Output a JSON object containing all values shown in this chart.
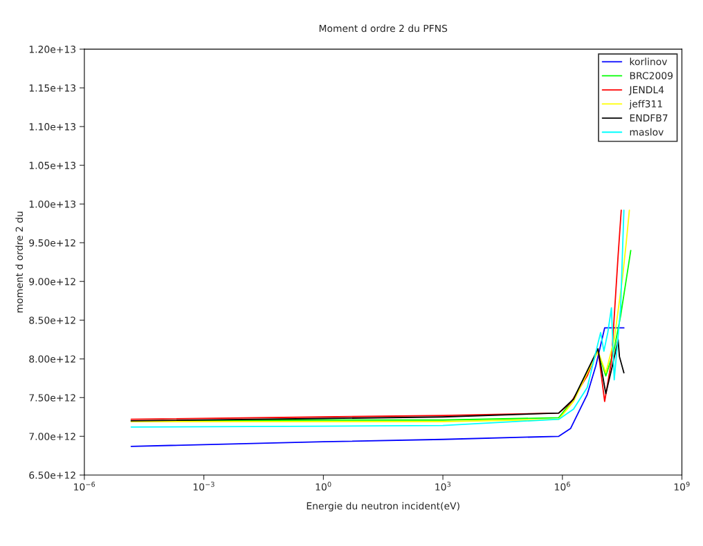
{
  "chart_data": {
    "type": "line",
    "title": "Moment d ordre 2 du PFNS",
    "xlabel": "Energie du neutron incident(eV)",
    "ylabel": "moment d ordre 2 du",
    "log": "x",
    "grid": false,
    "legend": "top right",
    "xlim": [
      1e-06,
      1000000000.0
    ],
    "ylim": [
      6500000000000.0,
      12000000000000.0
    ],
    "xticks": [
      {
        "value": 1e-06,
        "label": "10$^{−6}$"
      },
      {
        "value": 0.001,
        "label": "10$^{−3}$"
      },
      {
        "value": 1,
        "label": "10$^{0}$"
      },
      {
        "value": 1000,
        "label": "10$^{3}$"
      },
      {
        "value": 1000000.0,
        "label": "10$^{6}$"
      },
      {
        "value": 1000000000.0,
        "label": "10$^{9}$"
      }
    ],
    "yticks": [
      {
        "value": 6500000000000.0,
        "label": "6.50e+12"
      },
      {
        "value": 7000000000000.0,
        "label": "7.00e+12"
      },
      {
        "value": 7500000000000.0,
        "label": "7.50e+12"
      },
      {
        "value": 8000000000000.0,
        "label": "8.00e+12"
      },
      {
        "value": 8500000000000.0,
        "label": "8.50e+12"
      },
      {
        "value": 9000000000000.0,
        "label": "9.00e+12"
      },
      {
        "value": 9500000000000.0,
        "label": "9.50e+12"
      },
      {
        "value": 10000000000000.0,
        "label": "1.00e+13"
      },
      {
        "value": 10500000000000.0,
        "label": "1.05e+13"
      },
      {
        "value": 11000000000000.0,
        "label": "1.10e+13"
      },
      {
        "value": 11500000000000.0,
        "label": "1.15e+13"
      },
      {
        "value": 12000000000000.0,
        "label": "1.20e+13"
      }
    ],
    "series": [
      {
        "name": "korlinov",
        "color": "#0000ff",
        "x": [
          1.5e-05,
          1,
          1000,
          810000,
          1600000,
          4200000,
          6900000,
          11500000,
          35000000
        ],
        "values": [
          6870000000000.0,
          6930000000000.0,
          6960000000000.0,
          7000000000000.0,
          7100000000000.0,
          7540000000000.0,
          7910000000000.0,
          8400000000000.0,
          8400000000000.0
        ]
      },
      {
        "name": "BRC2009",
        "color": "#00ff00",
        "x": [
          1.5e-05,
          1,
          1000,
          810000,
          1900000,
          7800000,
          12300000,
          19500000,
          29000000,
          36000000,
          52000000
        ],
        "values": [
          7200000000000.0,
          7210000000000.0,
          7210000000000.0,
          7240000000000.0,
          7480000000000.0,
          8100000000000.0,
          7780000000000.0,
          8100000000000.0,
          8560000000000.0,
          8870000000000.0,
          9400000000000.0
        ]
      },
      {
        "name": "JENDL4",
        "color": "#ff0000",
        "x": [
          1.5e-05,
          1,
          1000,
          810000,
          1600000,
          4200000,
          7800000,
          11500000,
          17000000,
          25000000,
          30000000
        ],
        "values": [
          7220000000000.0,
          7250000000000.0,
          7270000000000.0,
          7300000000000.0,
          7430000000000.0,
          7780000000000.0,
          8130000000000.0,
          7450000000000.0,
          7970000000000.0,
          9330000000000.0,
          9920000000000.0
        ]
      },
      {
        "name": "jeff311",
        "color": "#ffff00",
        "x": [
          1.5e-05,
          1,
          1000,
          810000,
          1900000,
          7800000,
          12300000,
          20000000,
          32000000,
          40000000,
          48000000
        ],
        "values": [
          7190000000000.0,
          7190000000000.0,
          7190000000000.0,
          7220000000000.0,
          7450000000000.0,
          8100000000000.0,
          7820000000000.0,
          8250000000000.0,
          9030000000000.0,
          9500000000000.0,
          9920000000000.0
        ]
      },
      {
        "name": "ENDFB7",
        "color": "#000000",
        "x": [
          1.5e-05,
          1,
          1000,
          810000,
          1900000,
          7800000,
          12300000,
          18000000,
          25000000,
          27000000,
          35000000
        ],
        "values": [
          7200000000000.0,
          7230000000000.0,
          7250000000000.0,
          7300000000000.0,
          7480000000000.0,
          8130000000000.0,
          7550000000000.0,
          7910000000000.0,
          8250000000000.0,
          8030000000000.0,
          7820000000000.0
        ]
      },
      {
        "name": "maslov",
        "color": "#00ffff",
        "x": [
          1.5e-05,
          1,
          1000,
          810000,
          1900000,
          4200000,
          9100000,
          11000000,
          13800000,
          17000000,
          20000000,
          29000000,
          32000000,
          35000000
        ],
        "values": [
          7120000000000.0,
          7130000000000.0,
          7140000000000.0,
          7220000000000.0,
          7350000000000.0,
          7630000000000.0,
          8340000000000.0,
          8100000000000.0,
          8340000000000.0,
          8660000000000.0,
          7730000000000.0,
          8660000000000.0,
          9330000000000.0,
          9920000000000.0
        ]
      }
    ]
  }
}
